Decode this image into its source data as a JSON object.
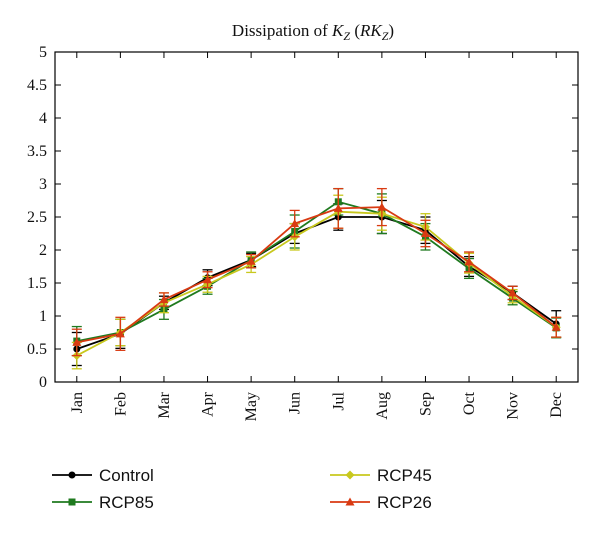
{
  "chart_data": {
    "type": "line",
    "title": {
      "prefix": "Dissipation of ",
      "var": "K",
      "var_sub": "Z",
      "paren_open": " (",
      "paren_var": "RK",
      "paren_sub": "Z",
      "paren_close": ")"
    },
    "xlabel": "",
    "ylabel": "",
    "categories": [
      "Jan",
      "Feb",
      "Mar",
      "Apr",
      "May",
      "Jun",
      "Jul",
      "Aug",
      "Sep",
      "Oct",
      "Nov",
      "Dec"
    ],
    "ylim": [
      0,
      5
    ],
    "yticks": [
      "0",
      "0.5",
      "1",
      "1.5",
      "2",
      "2.5",
      "3",
      "3.5",
      "4",
      "4.5",
      "5"
    ],
    "grid": false,
    "legend_position": "bottom",
    "series": [
      {
        "name": "Control",
        "color": "#000000",
        "marker": "circle",
        "values": [
          0.5,
          0.73,
          1.2,
          1.58,
          1.85,
          2.25,
          2.5,
          2.5,
          2.3,
          1.75,
          1.35,
          0.88
        ],
        "errors": [
          0.25,
          0.22,
          0.1,
          0.12,
          0.1,
          0.15,
          0.2,
          0.25,
          0.2,
          0.15,
          0.1,
          0.2
        ]
      },
      {
        "name": "RCP85",
        "color": "#1f7a1f",
        "marker": "square",
        "values": [
          0.62,
          0.75,
          1.1,
          1.45,
          1.85,
          2.28,
          2.73,
          2.55,
          2.2,
          1.72,
          1.27,
          0.82
        ],
        "errors": [
          0.22,
          0.2,
          0.15,
          0.12,
          0.12,
          0.25,
          0.2,
          0.3,
          0.2,
          0.15,
          0.1,
          0.15
        ]
      },
      {
        "name": "RCP45",
        "color": "#c8c81e",
        "marker": "diamond",
        "values": [
          0.4,
          0.75,
          1.2,
          1.48,
          1.78,
          2.2,
          2.58,
          2.55,
          2.35,
          1.8,
          1.3,
          0.83
        ],
        "errors": [
          0.2,
          0.2,
          0.15,
          0.12,
          0.12,
          0.2,
          0.25,
          0.25,
          0.2,
          0.15,
          0.1,
          0.15
        ]
      },
      {
        "name": "RCP26",
        "color": "#d93a12",
        "marker": "triangle",
        "values": [
          0.6,
          0.73,
          1.25,
          1.55,
          1.83,
          2.4,
          2.63,
          2.65,
          2.25,
          1.82,
          1.35,
          0.83
        ],
        "errors": [
          0.2,
          0.25,
          0.1,
          0.12,
          0.1,
          0.2,
          0.3,
          0.28,
          0.2,
          0.15,
          0.1,
          0.15
        ]
      }
    ]
  }
}
